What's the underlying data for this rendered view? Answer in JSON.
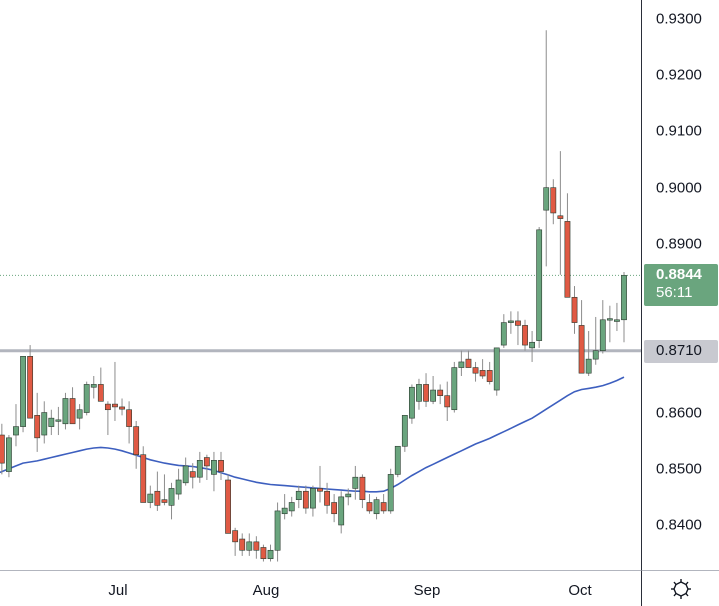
{
  "chart_data": {
    "type": "candlestick",
    "title": "",
    "xlabel": "",
    "ylabel": "",
    "ylim": [
      0.8325,
      0.9335
    ],
    "grid": false,
    "x_ticks": [
      "Jul",
      "Aug",
      "Sep",
      "Oct"
    ],
    "y_ticks": [
      0.93,
      0.92,
      0.91,
      0.9,
      0.89,
      0.86,
      0.85,
      0.84
    ],
    "last_price": 0.8844,
    "countdown": "56:11",
    "horizontal_level": 0.871,
    "moving_average_color": "#3d5fbf",
    "up_color": "#6aa57e",
    "down_color": "#e05a44",
    "candles": [
      {
        "o": 0.856,
        "h": 0.858,
        "l": 0.849,
        "c": 0.851
      },
      {
        "o": 0.8495,
        "h": 0.856,
        "l": 0.8485,
        "c": 0.8555
      },
      {
        "o": 0.856,
        "h": 0.8615,
        "l": 0.854,
        "c": 0.8575
      },
      {
        "o": 0.8575,
        "h": 0.8695,
        "l": 0.8565,
        "c": 0.87
      },
      {
        "o": 0.87,
        "h": 0.872,
        "l": 0.86,
        "c": 0.859
      },
      {
        "o": 0.8595,
        "h": 0.8635,
        "l": 0.853,
        "c": 0.8555
      },
      {
        "o": 0.856,
        "h": 0.862,
        "l": 0.8545,
        "c": 0.86
      },
      {
        "o": 0.8575,
        "h": 0.8605,
        "l": 0.856,
        "c": 0.859
      },
      {
        "o": 0.8585,
        "h": 0.861,
        "l": 0.856,
        "c": 0.8587
      },
      {
        "o": 0.858,
        "h": 0.8635,
        "l": 0.857,
        "c": 0.8625
      },
      {
        "o": 0.8625,
        "h": 0.8645,
        "l": 0.858,
        "c": 0.858
      },
      {
        "o": 0.859,
        "h": 0.8615,
        "l": 0.857,
        "c": 0.8605
      },
      {
        "o": 0.86,
        "h": 0.8655,
        "l": 0.8595,
        "c": 0.865
      },
      {
        "o": 0.8645,
        "h": 0.8665,
        "l": 0.8625,
        "c": 0.865
      },
      {
        "o": 0.865,
        "h": 0.868,
        "l": 0.862,
        "c": 0.862
      },
      {
        "o": 0.8615,
        "h": 0.862,
        "l": 0.856,
        "c": 0.8605
      },
      {
        "o": 0.8615,
        "h": 0.869,
        "l": 0.8585,
        "c": 0.861
      },
      {
        "o": 0.861,
        "h": 0.8625,
        "l": 0.8595,
        "c": 0.8606
      },
      {
        "o": 0.8605,
        "h": 0.862,
        "l": 0.8545,
        "c": 0.8575
      },
      {
        "o": 0.8575,
        "h": 0.8585,
        "l": 0.85,
        "c": 0.8525
      },
      {
        "o": 0.8525,
        "h": 0.854,
        "l": 0.844,
        "c": 0.844
      },
      {
        "o": 0.844,
        "h": 0.847,
        "l": 0.843,
        "c": 0.8455
      },
      {
        "o": 0.846,
        "h": 0.8495,
        "l": 0.8425,
        "c": 0.8435
      },
      {
        "o": 0.8445,
        "h": 0.849,
        "l": 0.8435,
        "c": 0.844
      },
      {
        "o": 0.8435,
        "h": 0.8475,
        "l": 0.841,
        "c": 0.8465
      },
      {
        "o": 0.8455,
        "h": 0.85,
        "l": 0.8445,
        "c": 0.848
      },
      {
        "o": 0.8475,
        "h": 0.852,
        "l": 0.847,
        "c": 0.8505
      },
      {
        "o": 0.8495,
        "h": 0.851,
        "l": 0.8465,
        "c": 0.8485
      },
      {
        "o": 0.8485,
        "h": 0.853,
        "l": 0.8475,
        "c": 0.8515
      },
      {
        "o": 0.852,
        "h": 0.8525,
        "l": 0.848,
        "c": 0.8505
      },
      {
        "o": 0.849,
        "h": 0.853,
        "l": 0.846,
        "c": 0.8515
      },
      {
        "o": 0.8515,
        "h": 0.853,
        "l": 0.848,
        "c": 0.8495
      },
      {
        "o": 0.848,
        "h": 0.849,
        "l": 0.8385,
        "c": 0.8385
      },
      {
        "o": 0.839,
        "h": 0.8395,
        "l": 0.8345,
        "c": 0.837
      },
      {
        "o": 0.8375,
        "h": 0.8385,
        "l": 0.8345,
        "c": 0.8355
      },
      {
        "o": 0.8355,
        "h": 0.8385,
        "l": 0.8345,
        "c": 0.837
      },
      {
        "o": 0.837,
        "h": 0.838,
        "l": 0.834,
        "c": 0.8355
      },
      {
        "o": 0.836,
        "h": 0.8365,
        "l": 0.8335,
        "c": 0.834
      },
      {
        "o": 0.834,
        "h": 0.8365,
        "l": 0.8335,
        "c": 0.8355
      },
      {
        "o": 0.8355,
        "h": 0.844,
        "l": 0.8335,
        "c": 0.8425
      },
      {
        "o": 0.842,
        "h": 0.8455,
        "l": 0.841,
        "c": 0.843
      },
      {
        "o": 0.8425,
        "h": 0.845,
        "l": 0.8415,
        "c": 0.844
      },
      {
        "o": 0.8445,
        "h": 0.847,
        "l": 0.843,
        "c": 0.846
      },
      {
        "o": 0.846,
        "h": 0.847,
        "l": 0.842,
        "c": 0.843
      },
      {
        "o": 0.843,
        "h": 0.847,
        "l": 0.8415,
        "c": 0.8465
      },
      {
        "o": 0.8465,
        "h": 0.8505,
        "l": 0.844,
        "c": 0.846
      },
      {
        "o": 0.846,
        "h": 0.8475,
        "l": 0.842,
        "c": 0.8435
      },
      {
        "o": 0.844,
        "h": 0.8455,
        "l": 0.8405,
        "c": 0.842
      },
      {
        "o": 0.84,
        "h": 0.846,
        "l": 0.8385,
        "c": 0.845
      },
      {
        "o": 0.845,
        "h": 0.8465,
        "l": 0.8435,
        "c": 0.8455
      },
      {
        "o": 0.8465,
        "h": 0.8505,
        "l": 0.8445,
        "c": 0.8485
      },
      {
        "o": 0.8485,
        "h": 0.849,
        "l": 0.843,
        "c": 0.8445
      },
      {
        "o": 0.844,
        "h": 0.8455,
        "l": 0.842,
        "c": 0.8425
      },
      {
        "o": 0.842,
        "h": 0.845,
        "l": 0.841,
        "c": 0.8445
      },
      {
        "o": 0.844,
        "h": 0.8455,
        "l": 0.842,
        "c": 0.8425
      },
      {
        "o": 0.8425,
        "h": 0.85,
        "l": 0.842,
        "c": 0.849
      },
      {
        "o": 0.849,
        "h": 0.854,
        "l": 0.8485,
        "c": 0.854
      },
      {
        "o": 0.854,
        "h": 0.859,
        "l": 0.853,
        "c": 0.8595
      },
      {
        "o": 0.859,
        "h": 0.865,
        "l": 0.858,
        "c": 0.8645
      },
      {
        "o": 0.862,
        "h": 0.866,
        "l": 0.8605,
        "c": 0.865
      },
      {
        "o": 0.865,
        "h": 0.867,
        "l": 0.861,
        "c": 0.862
      },
      {
        "o": 0.862,
        "h": 0.8665,
        "l": 0.8615,
        "c": 0.864
      },
      {
        "o": 0.864,
        "h": 0.865,
        "l": 0.8615,
        "c": 0.863
      },
      {
        "o": 0.863,
        "h": 0.8655,
        "l": 0.8585,
        "c": 0.861
      },
      {
        "o": 0.8605,
        "h": 0.869,
        "l": 0.86,
        "c": 0.868
      },
      {
        "o": 0.868,
        "h": 0.871,
        "l": 0.8665,
        "c": 0.869
      },
      {
        "o": 0.8695,
        "h": 0.871,
        "l": 0.868,
        "c": 0.868
      },
      {
        "o": 0.868,
        "h": 0.869,
        "l": 0.8655,
        "c": 0.867
      },
      {
        "o": 0.8675,
        "h": 0.8695,
        "l": 0.866,
        "c": 0.8665
      },
      {
        "o": 0.8675,
        "h": 0.869,
        "l": 0.865,
        "c": 0.8655
      },
      {
        "o": 0.864,
        "h": 0.8715,
        "l": 0.863,
        "c": 0.8715
      },
      {
        "o": 0.872,
        "h": 0.8775,
        "l": 0.8715,
        "c": 0.876
      },
      {
        "o": 0.876,
        "h": 0.878,
        "l": 0.874,
        "c": 0.8763
      },
      {
        "o": 0.8763,
        "h": 0.878,
        "l": 0.872,
        "c": 0.8755
      },
      {
        "o": 0.8755,
        "h": 0.8765,
        "l": 0.871,
        "c": 0.872
      },
      {
        "o": 0.8715,
        "h": 0.8745,
        "l": 0.869,
        "c": 0.8725
      },
      {
        "o": 0.8728,
        "h": 0.893,
        "l": 0.8715,
        "c": 0.8925
      },
      {
        "o": 0.896,
        "h": 0.928,
        "l": 0.886,
        "c": 0.9
      },
      {
        "o": 0.9,
        "h": 0.9015,
        "l": 0.8935,
        "c": 0.8955
      },
      {
        "o": 0.895,
        "h": 0.9065,
        "l": 0.8845,
        "c": 0.8945
      },
      {
        "o": 0.894,
        "h": 0.899,
        "l": 0.8805,
        "c": 0.8805
      },
      {
        "o": 0.8805,
        "h": 0.8825,
        "l": 0.874,
        "c": 0.876
      },
      {
        "o": 0.8755,
        "h": 0.88,
        "l": 0.867,
        "c": 0.867
      },
      {
        "o": 0.867,
        "h": 0.8745,
        "l": 0.8665,
        "c": 0.8695
      },
      {
        "o": 0.8695,
        "h": 0.877,
        "l": 0.8685,
        "c": 0.871
      },
      {
        "o": 0.871,
        "h": 0.88,
        "l": 0.8705,
        "c": 0.8765
      },
      {
        "o": 0.8765,
        "h": 0.879,
        "l": 0.8725,
        "c": 0.8767
      },
      {
        "o": 0.8762,
        "h": 0.8795,
        "l": 0.8745,
        "c": 0.8765
      },
      {
        "o": 0.8765,
        "h": 0.885,
        "l": 0.8725,
        "c": 0.8844
      }
    ],
    "moving_average": [
      0.849,
      0.8495,
      0.85,
      0.8505,
      0.851,
      0.8512,
      0.8514,
      0.8517,
      0.852,
      0.8523,
      0.8526,
      0.8529,
      0.8532,
      0.8535,
      0.8537,
      0.8538,
      0.8537,
      0.8535,
      0.8532,
      0.8528,
      0.8524,
      0.852,
      0.8516,
      0.8513,
      0.851,
      0.8508,
      0.8506,
      0.8505,
      0.8504,
      0.8502,
      0.85,
      0.8497,
      0.8493,
      0.8489,
      0.8485,
      0.8482,
      0.8479,
      0.8476,
      0.8474,
      0.8472,
      0.8471,
      0.847,
      0.8469,
      0.8468,
      0.8467,
      0.8466,
      0.8465,
      0.8464,
      0.8463,
      0.8462,
      0.8461,
      0.846,
      0.846,
      0.8459,
      0.8459,
      0.846,
      0.8465,
      0.8472,
      0.848,
      0.8488,
      0.8495,
      0.8502,
      0.8508,
      0.8514,
      0.852,
      0.8526,
      0.8532,
      0.8538,
      0.8544,
      0.8549,
      0.8554,
      0.856,
      0.8566,
      0.8572,
      0.8578,
      0.8584,
      0.859,
      0.8598,
      0.8606,
      0.8614,
      0.8622,
      0.863,
      0.8637,
      0.8641,
      0.8643,
      0.8645,
      0.8648,
      0.8652,
      0.8657,
      0.8663
    ]
  },
  "price_axis": {
    "ticks": [
      {
        "label": "0.9300",
        "value": 0.93
      },
      {
        "label": "0.9200",
        "value": 0.92
      },
      {
        "label": "0.9100",
        "value": 0.91
      },
      {
        "label": "0.9000",
        "value": 0.9
      },
      {
        "label": "0.8900",
        "value": 0.89
      },
      {
        "label": "0.8600",
        "value": 0.86
      },
      {
        "label": "0.8500",
        "value": 0.85
      },
      {
        "label": "0.8400",
        "value": 0.84
      }
    ],
    "last_price_label": "0.8844",
    "countdown_label": "56:11",
    "level_label": "0.8710"
  },
  "time_axis": {
    "ticks": [
      {
        "label": "Jul",
        "x": 118
      },
      {
        "label": "Aug",
        "x": 266
      },
      {
        "label": "Sep",
        "x": 427
      },
      {
        "label": "Oct",
        "x": 580
      }
    ]
  },
  "settings": {
    "icon": "gear-icon"
  },
  "colors": {
    "up": "#6aa57e",
    "down": "#e05a44",
    "wick": "#8c8c8c",
    "ma": "#3d5fbf",
    "level_line": "#b2b5be",
    "last_price_line": "#6aa57e"
  }
}
